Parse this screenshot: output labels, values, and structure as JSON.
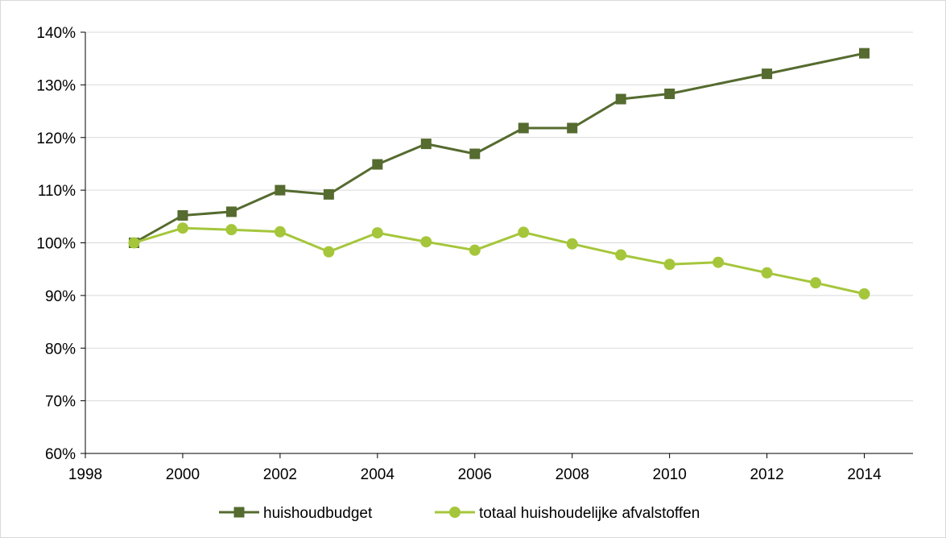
{
  "chart_data": {
    "type": "line",
    "title": "",
    "xlabel": "",
    "ylabel": "",
    "xlim": [
      1998,
      2015
    ],
    "ylim": [
      60,
      140
    ],
    "x_ticks": [
      1998,
      2000,
      2002,
      2004,
      2006,
      2008,
      2010,
      2012,
      2014
    ],
    "x_tick_labels": [
      "1998",
      "2000",
      "2002",
      "2004",
      "2006",
      "2008",
      "2010",
      "2012",
      "2014"
    ],
    "y_ticks": [
      60,
      70,
      80,
      90,
      100,
      110,
      120,
      130,
      140
    ],
    "y_tick_labels": [
      "60%",
      "70%",
      "80%",
      "90%",
      "100%",
      "110%",
      "120%",
      "130%",
      "140%"
    ],
    "grid": "horizontal",
    "legend_position": "bottom",
    "series": [
      {
        "name": "huishoudbudget",
        "color": "#556b2f",
        "marker": "square",
        "x": [
          1999,
          2000,
          2001,
          2002,
          2003,
          2004,
          2005,
          2006,
          2007,
          2008,
          2009,
          2010,
          2012,
          2014
        ],
        "values": [
          100,
          105.2,
          105.9,
          110,
          109.2,
          114.9,
          118.8,
          116.9,
          121.8,
          121.8,
          127.3,
          128.3,
          132.1,
          136
        ]
      },
      {
        "name": "totaal huishoudelijke afvalstoffen",
        "color": "#a5c63b",
        "marker": "circle",
        "x": [
          1999,
          2000,
          2001,
          2002,
          2003,
          2004,
          2005,
          2006,
          2007,
          2008,
          2009,
          2010,
          2011,
          2012,
          2013,
          2014
        ],
        "values": [
          100,
          102.8,
          102.5,
          102.1,
          98.3,
          101.9,
          100.2,
          98.6,
          102,
          99.8,
          97.7,
          95.9,
          96.3,
          94.3,
          92.4,
          90.3
        ]
      }
    ]
  }
}
